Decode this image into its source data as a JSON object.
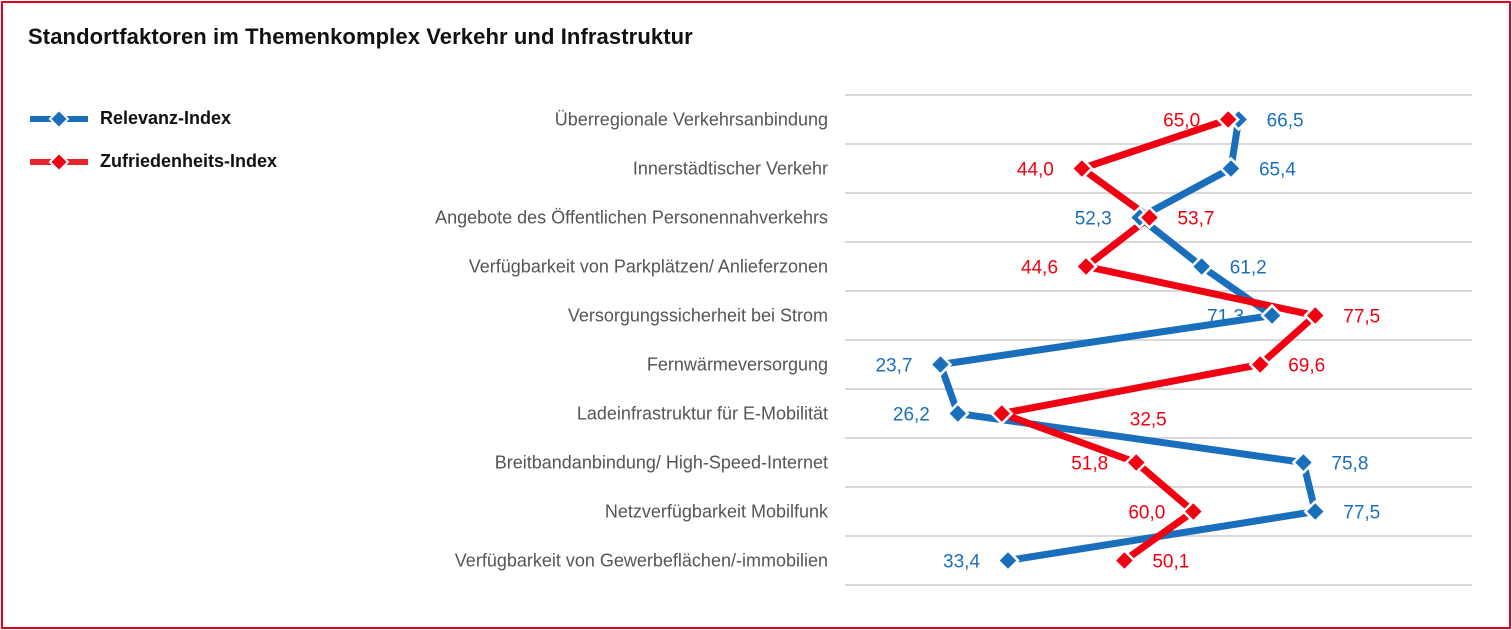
{
  "title": "Standortfaktoren im Themenkomplex Verkehr und Infrastruktur",
  "chart_data": {
    "type": "line",
    "orientation": "horizontal",
    "title": "Standortfaktoren im Themenkomplex Verkehr und Infrastruktur",
    "categories": [
      "Überregionale Verkehrsanbindung",
      "Innerstädtischer Verkehr",
      "Angebote des Öffentlichen Personennahverkehrs",
      "Verfügbarkeit von Parkplätzen/ Anlieferzonen",
      "Versorgungssicherheit bei Strom",
      "Fernwärmeversorgung",
      "Ladeinfrastruktur für E-Mobilität",
      "Breitbandanbindung/ High-Speed-Internet",
      "Netzverfügbarkeit Mobilfunk",
      "Verfügbarkeit von Gewerbeflächen/-immobilien"
    ],
    "series": [
      {
        "name": "Relevanz-Index",
        "color": "#1a6fbd",
        "values": [
          66.5,
          65.4,
          52.3,
          61.2,
          71.3,
          23.7,
          26.2,
          75.8,
          77.5,
          33.4
        ],
        "labels": [
          "66,5",
          "65,4",
          "52,3",
          "61,2",
          "71,3",
          "23,7",
          "26,2",
          "75,8",
          "77,5",
          "33,4"
        ]
      },
      {
        "name": "Zufriedenheits-Index",
        "color": "#f00010",
        "values": [
          65.0,
          44.0,
          53.7,
          44.6,
          77.5,
          69.6,
          32.5,
          51.8,
          60.0,
          50.1
        ],
        "labels": [
          "65,0",
          "44,0",
          "53,7",
          "44,6",
          "77,5",
          "69,6",
          "32,5",
          "51,8",
          "60,0",
          "50,1"
        ]
      }
    ],
    "xlim": [
      10,
      100
    ],
    "grid": true,
    "legend_position": "top-left"
  }
}
